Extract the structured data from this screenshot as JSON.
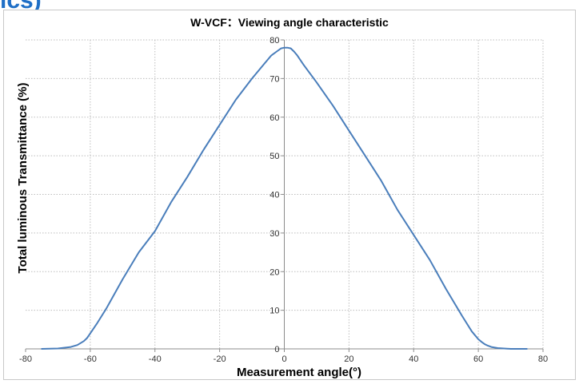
{
  "banner": {
    "text": "ics)",
    "color": "#1f6fc6"
  },
  "chart_data": {
    "type": "line",
    "title": "W-VCF：Viewing angle characteristic",
    "xlabel": "Measurement angle(°)",
    "ylabel": "Total luminous Transmittance (%)",
    "xlim": [
      -80,
      80
    ],
    "ylim": [
      0,
      80
    ],
    "xticks": [
      -80,
      -60,
      -40,
      -20,
      0,
      20,
      40,
      60,
      80
    ],
    "yticks": [
      0,
      10,
      20,
      30,
      40,
      50,
      60,
      70,
      80
    ],
    "grid": true,
    "legend": "none",
    "series": [
      {
        "color": "#4a7ebb",
        "x": [
          -75,
          -70,
          -66,
          -64,
          -62,
          -61,
          -60,
          -58,
          -55,
          -50,
          -45,
          -40,
          -35,
          -30,
          -25,
          -20,
          -15,
          -10,
          -6,
          -4,
          -2,
          -1,
          0,
          1,
          2,
          3,
          4,
          6,
          10,
          15,
          20,
          25,
          30,
          35,
          40,
          45,
          50,
          55,
          58,
          60,
          61,
          62,
          63,
          64,
          66,
          70,
          75
        ],
        "y": [
          0,
          0.1,
          0.5,
          1,
          2,
          2.8,
          4,
          6.5,
          10.5,
          18,
          25,
          30.5,
          38,
          44.5,
          51.5,
          58,
          64.5,
          70,
          74,
          76,
          77.2,
          77.8,
          78,
          78,
          77.8,
          77,
          76,
          73.5,
          69,
          63,
          56.5,
          50,
          43.5,
          36,
          29.5,
          23,
          15.5,
          8.5,
          4.5,
          2.5,
          1.8,
          1.2,
          0.8,
          0.5,
          0.2,
          0,
          0
        ]
      }
    ]
  }
}
